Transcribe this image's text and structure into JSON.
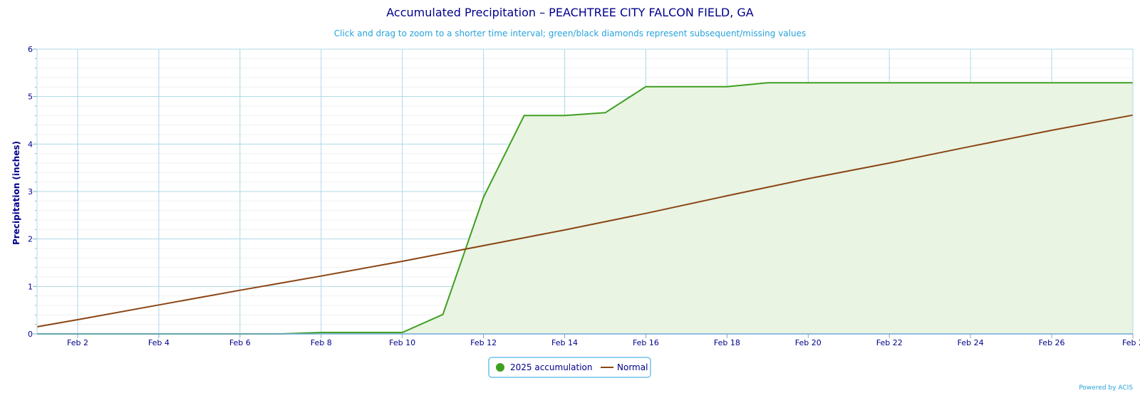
{
  "chart_data": {
    "type": "area",
    "title": "Accumulated Precipitation – PEACHTREE CITY FALCON FIELD, GA",
    "subtitle": "Click and drag to zoom to a shorter time interval; green/black diamonds represent subsequent/missing values",
    "ylabel": "Precipitation (inches)",
    "xlabel": "",
    "xlim": [
      "Feb 1",
      "Feb 28"
    ],
    "ylim": [
      0,
      6
    ],
    "x_tick_labels": [
      "Feb 2",
      "Feb 4",
      "Feb 6",
      "Feb 8",
      "Feb 10",
      "Feb 12",
      "Feb 14",
      "Feb 16",
      "Feb 18",
      "Feb 20",
      "Feb 22",
      "Feb 24",
      "Feb 26",
      "Feb 2"
    ],
    "y_tick_labels": [
      "0",
      "1",
      "2",
      "3",
      "4",
      "5",
      "6"
    ],
    "grid": true,
    "legend_position": "bottom-center",
    "series": [
      {
        "name": "2025 accumulation",
        "style": "area",
        "color": "#3f9f22",
        "fill_color": "#e9f4e3",
        "x": [
          "Feb 1",
          "Feb 2",
          "Feb 3",
          "Feb 4",
          "Feb 5",
          "Feb 6",
          "Feb 7",
          "Feb 8",
          "Feb 9",
          "Feb 10",
          "Feb 11",
          "Feb 12",
          "Feb 13",
          "Feb 14",
          "Feb 15",
          "Feb 16",
          "Feb 17",
          "Feb 18",
          "Feb 19",
          "Feb 20",
          "Feb 21",
          "Feb 22",
          "Feb 23",
          "Feb 24",
          "Feb 25",
          "Feb 26",
          "Feb 27",
          "Feb 28"
        ],
        "values": [
          0,
          0,
          0,
          0,
          0,
          0,
          0,
          0.03,
          0.03,
          0.03,
          0.41,
          2.88,
          4.6,
          4.6,
          4.66,
          5.21,
          5.21,
          5.21,
          5.29,
          5.29,
          5.29,
          5.29,
          5.29,
          5.29,
          5.29,
          5.29,
          5.29,
          5.29
        ]
      },
      {
        "name": "Normal",
        "style": "line",
        "color": "#8b4513",
        "x": [
          "Feb 1",
          "Feb 2",
          "Feb 4",
          "Feb 6",
          "Feb 8",
          "Feb 10",
          "Feb 12",
          "Feb 14",
          "Feb 16",
          "Feb 18",
          "Feb 20",
          "Feb 22",
          "Feb 24",
          "Feb 26",
          "Feb 28"
        ],
        "values": [
          0.15,
          0.3,
          0.61,
          0.92,
          1.22,
          1.53,
          1.86,
          2.19,
          2.54,
          2.91,
          3.27,
          3.6,
          3.95,
          4.29,
          4.61
        ]
      }
    ],
    "credit": "Powered by ACIS"
  }
}
